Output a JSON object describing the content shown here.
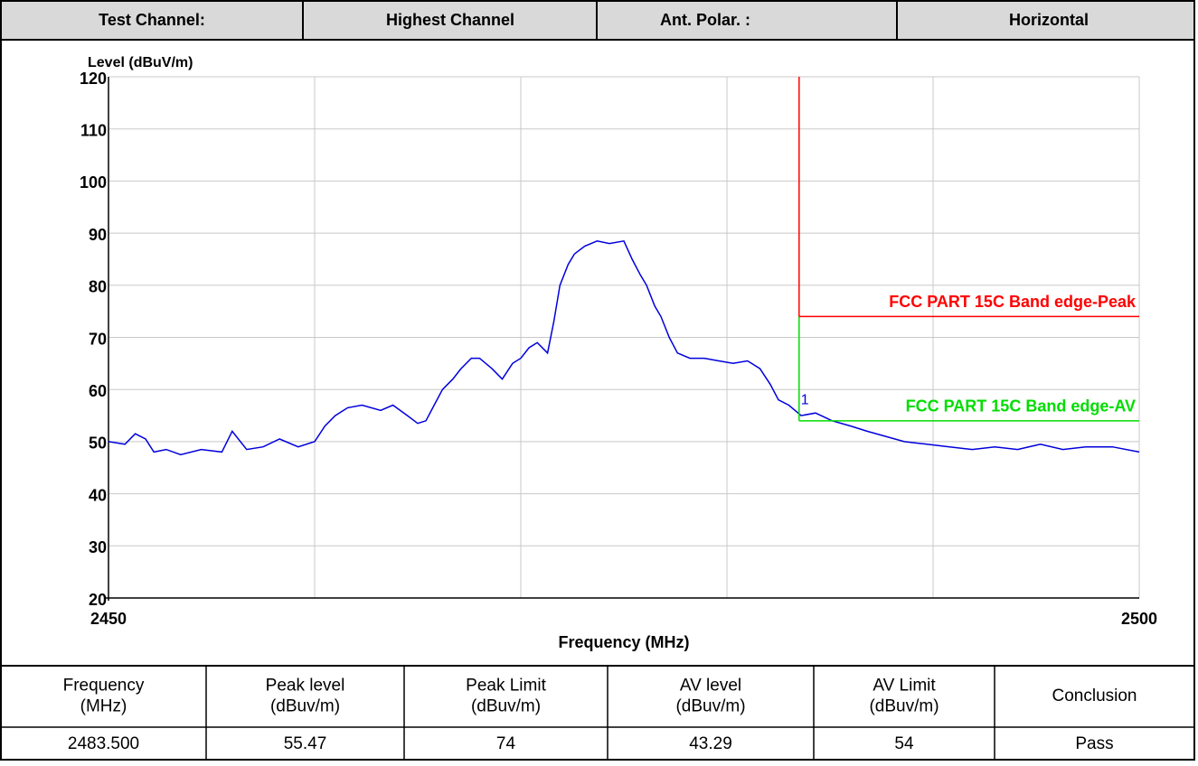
{
  "header": {
    "cells": [
      "Test Channel:",
      "Highest Channel",
      "Ant. Polar. :",
      "Horizontal"
    ]
  },
  "chart_data": {
    "type": "line",
    "ylabel": "Level (dBuV/m)",
    "xlabel": "Frequency (MHz)",
    "xlim": [
      2450,
      2500
    ],
    "xticks": [
      2450,
      2500
    ],
    "xgrid": [
      2460,
      2470,
      2480,
      2490
    ],
    "ylim": [
      20,
      120
    ],
    "yticks": [
      20,
      30,
      40,
      50,
      60,
      70,
      80,
      90,
      100,
      110,
      120
    ],
    "grid": true,
    "series": [
      {
        "color": "#0000dd",
        "x": [
          2450,
          2450.8,
          2451.3,
          2451.8,
          2452.2,
          2452.8,
          2453.5,
          2454.5,
          2455.5,
          2456,
          2456.7,
          2457.5,
          2458.3,
          2459.2,
          2460,
          2460.5,
          2461,
          2461.6,
          2462.3,
          2463.2,
          2463.8,
          2464.5,
          2465,
          2465.4,
          2465.8,
          2466.2,
          2466.7,
          2467.1,
          2467.6,
          2468,
          2468.6,
          2469.1,
          2469.6,
          2470,
          2470.4,
          2470.8,
          2471.3,
          2471.6,
          2471.9,
          2472.3,
          2472.6,
          2473.1,
          2473.7,
          2474.3,
          2475,
          2475.4,
          2475.8,
          2476.1,
          2476.5,
          2476.8,
          2477.2,
          2477.6,
          2478.2,
          2478.9,
          2479.6,
          2480.3,
          2481,
          2481.6,
          2482.1,
          2482.5,
          2483,
          2483.6,
          2484.3,
          2485.1,
          2486,
          2486.8,
          2487.7,
          2488.6,
          2489.7,
          2490.8,
          2491.9,
          2493,
          2494.1,
          2495.2,
          2496.3,
          2497.4,
          2498.7,
          2500
        ],
        "values": [
          50,
          49.5,
          51.5,
          50.5,
          48,
          48.5,
          47.5,
          48.5,
          48,
          52,
          48.5,
          49,
          50.5,
          49,
          50,
          53,
          55,
          56.5,
          57,
          56,
          57,
          55,
          53.5,
          54,
          57,
          60,
          62,
          64,
          66,
          66,
          64,
          62,
          65,
          66,
          68,
          69,
          67,
          73,
          80,
          84,
          86,
          87.5,
          88.5,
          88,
          88.5,
          85,
          82,
          80,
          76,
          74,
          70,
          67,
          66,
          66,
          65.5,
          65,
          65.5,
          64,
          61,
          58,
          57,
          55,
          55.5,
          54,
          53,
          52,
          51,
          50,
          49.5,
          49,
          48.5,
          49,
          48.5,
          49.5,
          48.5,
          49,
          49,
          48
        ]
      }
    ],
    "band_edge": 2483.5,
    "limits": [
      {
        "name": "FCC PART 15C Band edge-Peak",
        "color": "#ff0000",
        "value": 74
      },
      {
        "name": "FCC PART 15C Band edge-AV",
        "color": "#00dd00",
        "value": 54
      }
    ],
    "marker": {
      "label": "1",
      "x": 2483.5,
      "y": 55.47
    }
  },
  "table": {
    "header": [
      [
        "Frequency",
        "(MHz)"
      ],
      [
        "Peak level",
        "(dBuv/m)"
      ],
      [
        "Peak Limit",
        "(dBuv/m)"
      ],
      [
        "AV level",
        "(dBuv/m)"
      ],
      [
        "AV Limit",
        "(dBuv/m)"
      ],
      [
        "Conclusion"
      ]
    ],
    "rows": [
      [
        "2483.500",
        "55.47",
        "74",
        "43.29",
        "54",
        "Pass"
      ]
    ]
  }
}
